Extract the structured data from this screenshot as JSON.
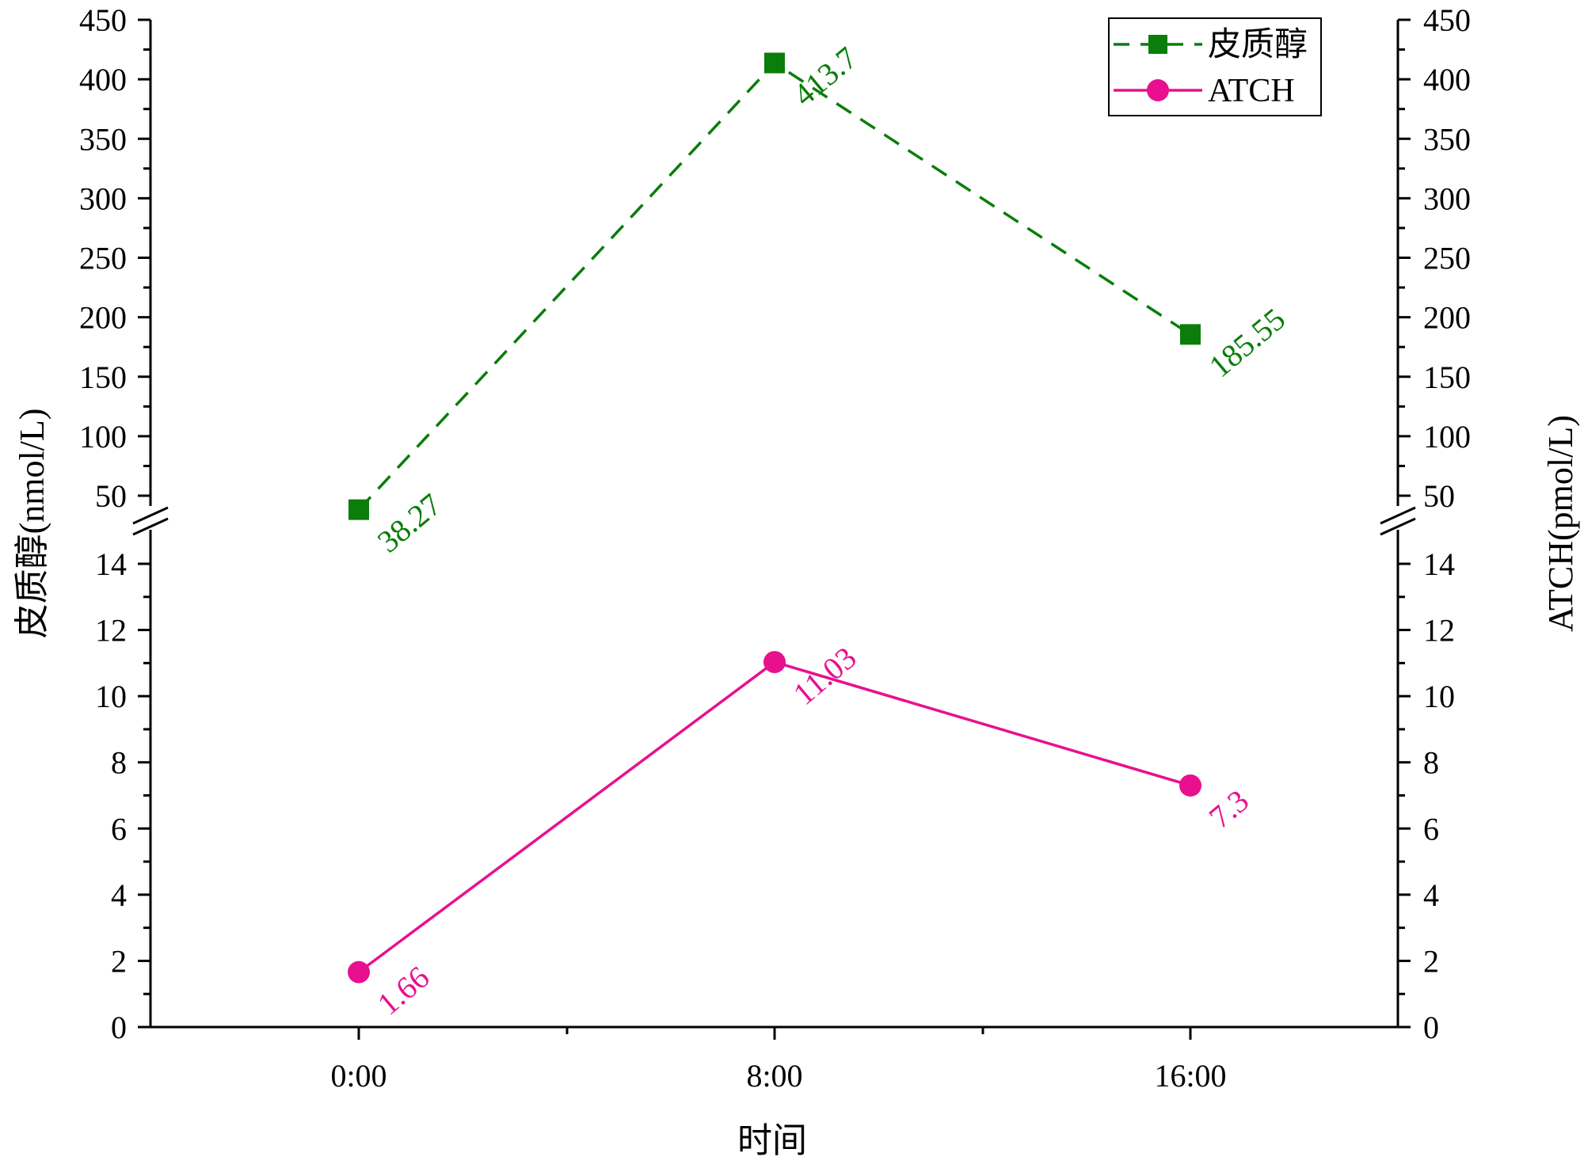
{
  "chart_data": {
    "type": "line",
    "categories": [
      "0:00",
      "8:00",
      "16:00"
    ],
    "xlabel": "时间",
    "ylabel_left": "皮质醇(nmol/L)",
    "ylabel_right": "ATCH(pmol/L)",
    "y_axis_break": {
      "lower_range": [
        0,
        15
      ],
      "upper_range": [
        45,
        450
      ],
      "lower_ticks": [
        "0",
        "2",
        "4",
        "6",
        "8",
        "10",
        "12",
        "14"
      ],
      "upper_ticks": [
        "50",
        "100",
        "150",
        "200",
        "250",
        "300",
        "350",
        "400",
        "450"
      ]
    },
    "series": [
      {
        "name": "皮质醇",
        "values": [
          38.27,
          413.7,
          185.55
        ],
        "labels": [
          "38.27",
          "413.7",
          "185.55"
        ],
        "color": "#0a7d0a",
        "line_style": "dashed",
        "marker": "square"
      },
      {
        "name": "ATCH",
        "values": [
          1.66,
          11.03,
          7.3
        ],
        "labels": [
          "1.66",
          "11.03",
          "7.3"
        ],
        "color": "#e8108f",
        "line_style": "solid",
        "marker": "circle"
      }
    ],
    "legend": {
      "position": "top-right"
    },
    "grid": false
  }
}
